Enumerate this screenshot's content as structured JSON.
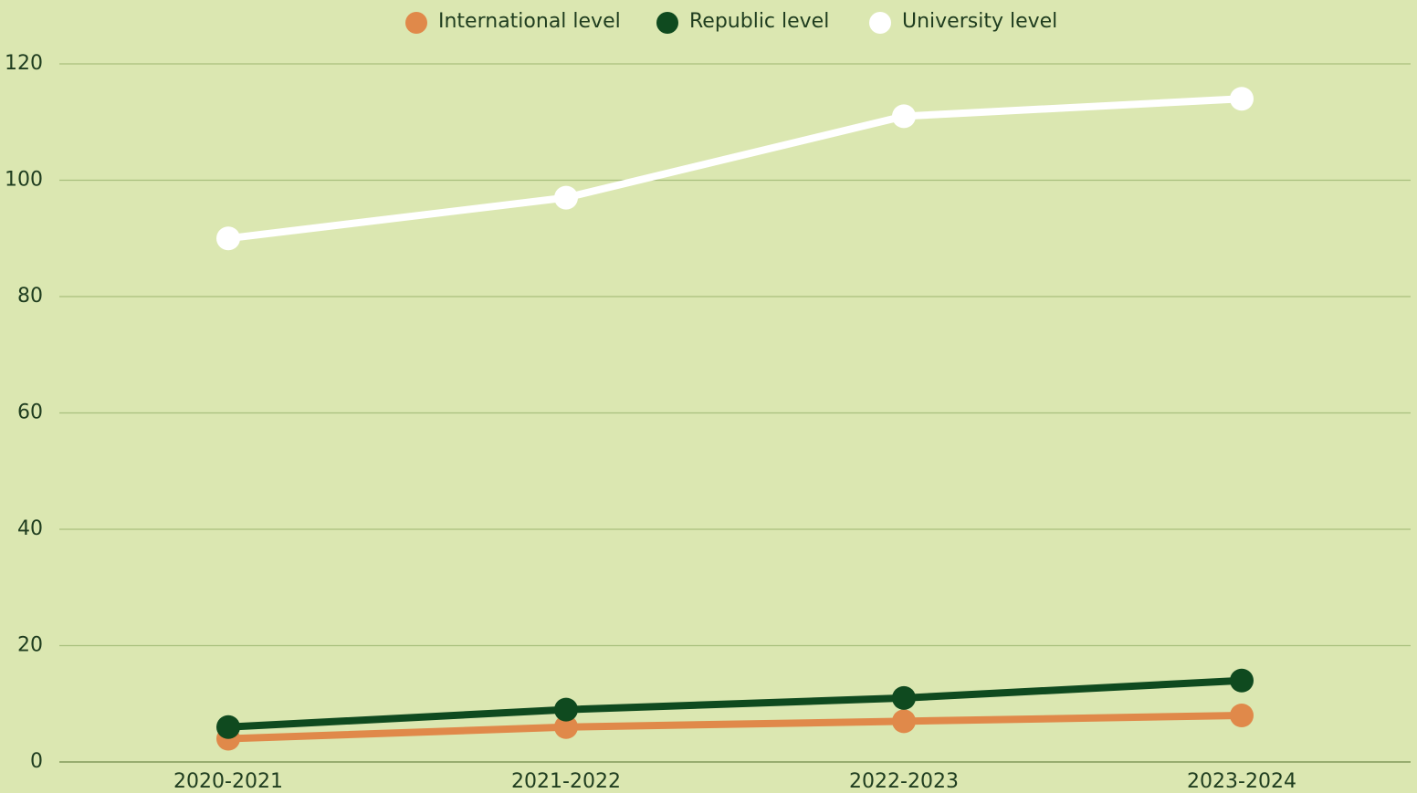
{
  "chart_data": {
    "type": "line",
    "categories": [
      "2020-2021",
      "2021-2022",
      "2022-2023",
      "2023-2024"
    ],
    "series": [
      {
        "name": "International level",
        "color": "#e0894a",
        "values": [
          4,
          6,
          7,
          8
        ]
      },
      {
        "name": "Republic level",
        "color": "#0f4a1f",
        "values": [
          6,
          9,
          11,
          14
        ]
      },
      {
        "name": "University level",
        "color": "#ffffff",
        "values": [
          90,
          97,
          111,
          114
        ]
      }
    ],
    "ylim": [
      0,
      120
    ],
    "yticks": [
      0,
      20,
      40,
      60,
      80,
      100,
      120
    ],
    "grid": true,
    "legend": "top"
  }
}
